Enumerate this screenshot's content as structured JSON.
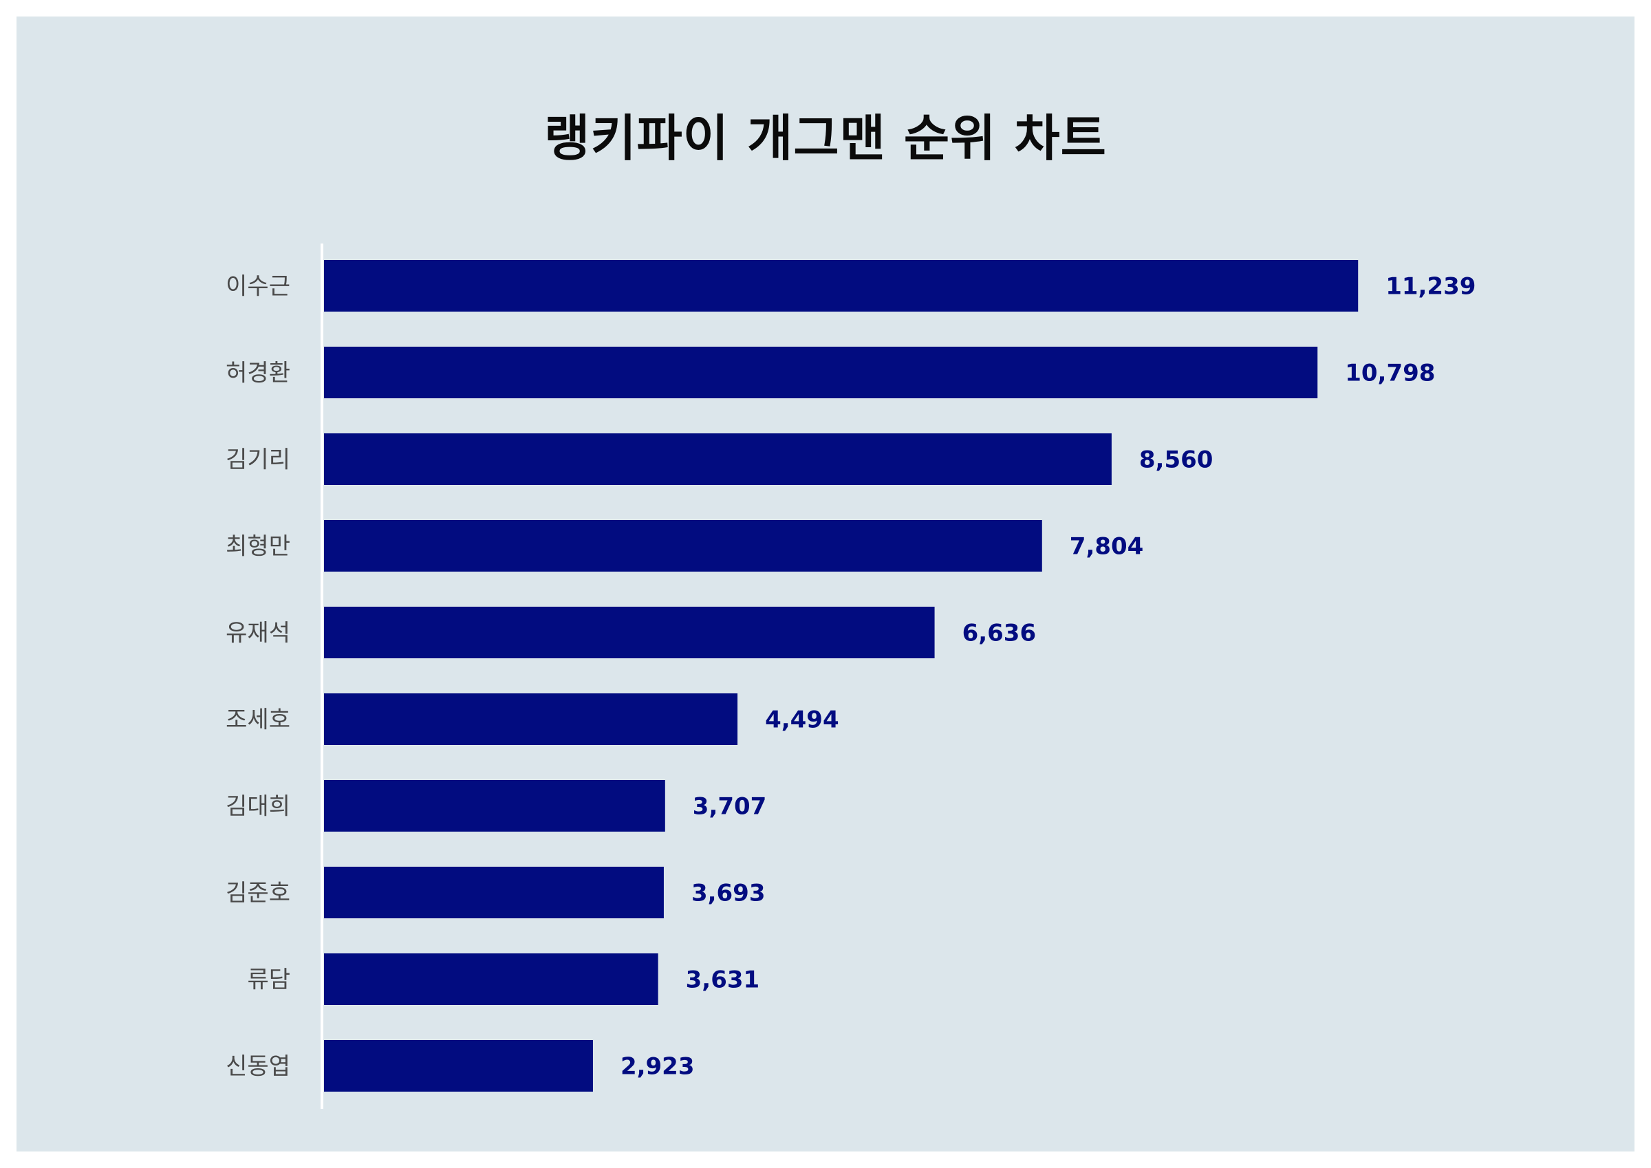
{
  "chart_data": {
    "type": "bar",
    "orientation": "horizontal",
    "title": "랭키파이 개그맨 순위 차트",
    "categories": [
      "이수근",
      "허경환",
      "김기리",
      "최형만",
      "유재석",
      "조세호",
      "김대희",
      "김준호",
      "류담",
      "신동엽"
    ],
    "values": [
      11239,
      10798,
      8560,
      7804,
      6636,
      4494,
      3707,
      3693,
      3631,
      2923
    ],
    "value_labels": [
      "11,239",
      "10,798",
      "8,560",
      "7,804",
      "6,636",
      "4,494",
      "3,707",
      "3,693",
      "3,631",
      "2,923"
    ],
    "xlim": [
      0,
      12000
    ],
    "xlabel": "",
    "ylabel": "",
    "grid": false,
    "legend": "none",
    "colors": {
      "bar": "#020c80",
      "value_label": "#020c80",
      "category_label": "#4a4a4a",
      "background": "#dce6eb",
      "axis": "#ffffff"
    }
  }
}
